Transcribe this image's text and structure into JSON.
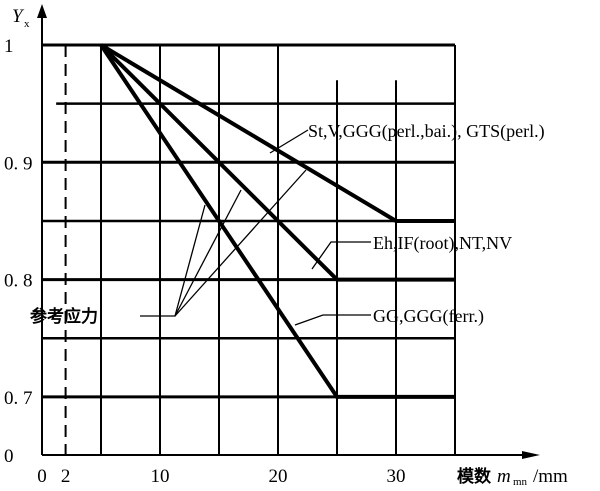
{
  "chart_data": {
    "type": "line",
    "title": "",
    "ylabel": "Y",
    "ylabel_sub": "x",
    "xlabel_cn": "模数",
    "xlabel_var": "m",
    "xlabel_sub": "mn",
    "xlabel_unit": "/mm",
    "xlim": [
      0,
      35
    ],
    "ylim": [
      0.7,
      1.0
    ],
    "y_axis_broken": true,
    "grid": true,
    "x_grid": [
      0,
      5,
      10,
      15,
      20,
      25,
      30,
      35
    ],
    "y_grid": [
      0.7,
      0.75,
      0.8,
      0.85,
      0.9,
      0.95,
      1.0
    ],
    "x_ticks": [
      "0",
      "2",
      "10",
      "20",
      "30"
    ],
    "x_tick_values": [
      0,
      2,
      10,
      20,
      30
    ],
    "y_ticks": [
      "1",
      "0. 9",
      "0. 8",
      "0. 7",
      "0"
    ],
    "y_tick_values": [
      1.0,
      0.9,
      0.8,
      0.7,
      0
    ],
    "dashed_reference_x": 2,
    "series": [
      {
        "name": "St,V,GGG(perl.,bai.), GTS(perl.)",
        "x": [
          5,
          30,
          35
        ],
        "y": [
          1.0,
          0.85,
          0.85
        ]
      },
      {
        "name": "Eh,IF(root),NT,NV",
        "x": [
          5,
          25,
          35
        ],
        "y": [
          1.0,
          0.8,
          0.8
        ]
      },
      {
        "name": "GG,GGG(ferr.)",
        "x": [
          5,
          25,
          35
        ],
        "y": [
          1.0,
          0.7,
          0.7
        ]
      }
    ],
    "annotations": {
      "reference_stress": "参考应力"
    }
  }
}
